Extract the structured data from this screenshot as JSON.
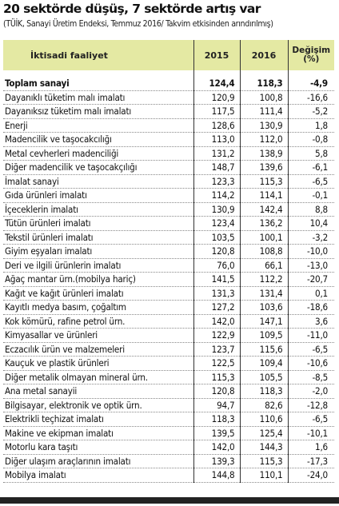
{
  "title": "20 sektörde düşüş, 7 sektörde artış var",
  "subtitle": "(TÜİK, Sanayi Üretim Endeksi, Temmuz 2016/ Takvim etkisinden arındırılmış)",
  "table": {
    "headers": {
      "activity": "İktisadi faaliyet",
      "y2015": "2015",
      "y2016": "2016",
      "change_line1": "Değişim",
      "change_line2": "(%)"
    },
    "rows": [
      {
        "name": "Toplam sanayi",
        "y2015": "124,4",
        "y2016": "118,3",
        "change": "-4,9",
        "bold": true
      },
      {
        "name": "Dayanıklı tüketim malı imalatı",
        "y2015": "120,9",
        "y2016": "100,8",
        "change": "-16,6"
      },
      {
        "name": "Dayanıksız tüketim malı imalatı",
        "y2015": "117,5",
        "y2016": "111,4",
        "change": "-5,2"
      },
      {
        "name": "Enerji",
        "y2015": "128,6",
        "y2016": "130,9",
        "change": "1,8"
      },
      {
        "name": "Madencilik ve taşocakcılığı",
        "y2015": "113,0",
        "y2016": "112,0",
        "change": "-0,8"
      },
      {
        "name": "Metal cevherleri madenciliği",
        "y2015": "131,2",
        "y2016": "138,9",
        "change": "5,8"
      },
      {
        "name": "Diğer madencilik ve taşocakçılığı",
        "y2015": "148,7",
        "y2016": "139,6",
        "change": "-6,1"
      },
      {
        "name": "İmalat sanayi",
        "y2015": "123,3",
        "y2016": "115,3",
        "change": "-6,5"
      },
      {
        "name": "Gıda ürünleri imalatı",
        "y2015": "114,2",
        "y2016": "114,1",
        "change": "-0,1"
      },
      {
        "name": "İçeceklerin imalatı",
        "y2015": "130,9",
        "y2016": "142,4",
        "change": "8,8"
      },
      {
        "name": "Tütün ürünleri imalatı",
        "y2015": "123,4",
        "y2016": "136,2",
        "change": "10,4"
      },
      {
        "name": "Tekstil ürünleri imalatı",
        "y2015": "103,5",
        "y2016": "100,1",
        "change": "-3,2"
      },
      {
        "name": "Giyim eşyaları imalatı",
        "y2015": "120,8",
        "y2016": "108,8",
        "change": "-10,0"
      },
      {
        "name": "Deri ve ilgili ürünlerin imalatı",
        "y2015": "76,0",
        "y2016": "66,1",
        "change": "-13,0"
      },
      {
        "name": "Ağaç mantar ürn.(mobilya hariç)",
        "y2015": "141,5",
        "y2016": "112,2",
        "change": "-20,7"
      },
      {
        "name": "Kağıt ve kağıt ürünleri imalatı",
        "y2015": "131,3",
        "y2016": "131,4",
        "change": "0,1"
      },
      {
        "name": "Kayıtlı medya basım, çoğaltım",
        "y2015": "127,2",
        "y2016": "103,6",
        "change": "-18,6"
      },
      {
        "name": "Kok kömürü, rafine petrol ürn.",
        "y2015": "142,0",
        "y2016": "147,1",
        "change": "3,6"
      },
      {
        "name": "Kimyasallar ve ürünleri",
        "y2015": "122,9",
        "y2016": "109,5",
        "change": "-11,0"
      },
      {
        "name": "Eczacılık ürün ve malzemeleri",
        "y2015": "123,7",
        "y2016": "115,6",
        "change": "-6,5"
      },
      {
        "name": "Kauçuk ve plastik ürünleri",
        "y2015": "122,5",
        "y2016": "109,4",
        "change": "-10,6"
      },
      {
        "name": "Diğer metalik olmayan mineral ürn.",
        "y2015": "115,3",
        "y2016": "105,5",
        "change": "-8,5"
      },
      {
        "name": "Ana metal sanayii",
        "y2015": "120,8",
        "y2016": "118,3",
        "change": "-2,0"
      },
      {
        "name": "Bilgisayar, elektronik ve optik ürn.",
        "y2015": "94,7",
        "y2016": "82,6",
        "change": "-12,8"
      },
      {
        "name": "Elektrikli teçhizat imalatı",
        "y2015": "118,3",
        "y2016": "110,6",
        "change": "-6,5"
      },
      {
        "name": "Makine ve ekipman imalatı",
        "y2015": "139,5",
        "y2016": "125,4",
        "change": "-10,1"
      },
      {
        "name": "Motorlu kara taşıtı",
        "y2015": "142,0",
        "y2016": "144,3",
        "change": "1,6"
      },
      {
        "name": "Diğer ulaşım araçlarının imalatı",
        "y2015": "139,3",
        "y2016": "115,3",
        "change": "-17,3"
      },
      {
        "name": "Mobilya imalatı",
        "y2015": "144,8",
        "y2016": "110,1",
        "change": "-24,0"
      }
    ]
  }
}
